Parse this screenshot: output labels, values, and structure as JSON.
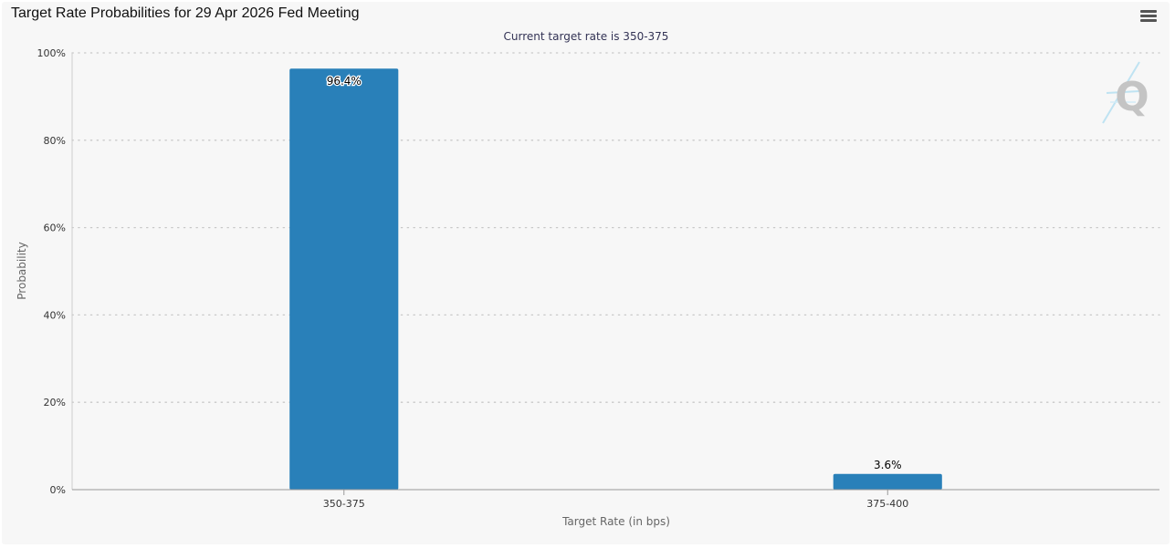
{
  "header": {
    "title": "Target Rate Probabilities for 29 Apr 2026 Fed Meeting",
    "menu_icon": "hamburger-menu-icon"
  },
  "watermark": {
    "letter": "Q",
    "icon": "quikstrike-logo-icon"
  },
  "chart_data": {
    "type": "bar",
    "title": "Target Rate Probabilities for 29 Apr 2026 Fed Meeting",
    "subtitle": "Current target rate is 350-375",
    "xlabel": "Target Rate (in bps)",
    "ylabel": "Probability",
    "categories": [
      "350-375",
      "375-400"
    ],
    "values": [
      96.4,
      3.6
    ],
    "data_labels": [
      "96.4%",
      "3.6%"
    ],
    "ylim": [
      0,
      100
    ],
    "yticks": [
      0,
      20,
      40,
      60,
      80,
      100
    ],
    "ytick_labels": [
      "0%",
      "20%",
      "40%",
      "60%",
      "80%",
      "100%"
    ],
    "grid": true,
    "legend": false,
    "bar_color": "#2980b9"
  }
}
